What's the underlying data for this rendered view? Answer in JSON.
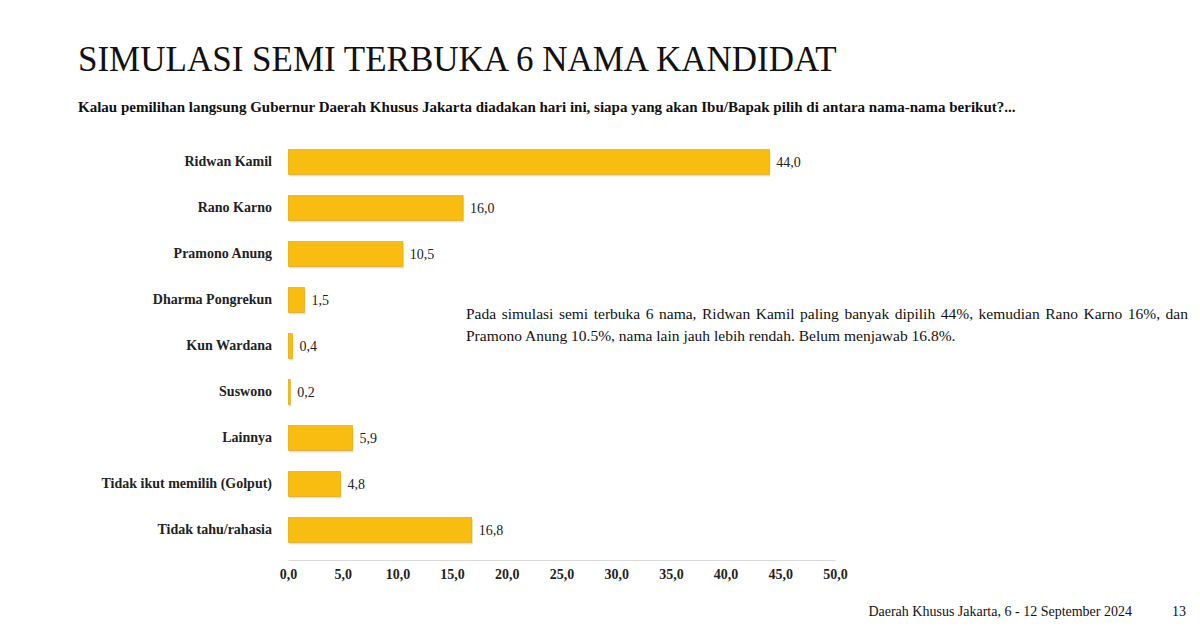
{
  "chart_data": {
    "type": "bar",
    "orientation": "horizontal",
    "title": "SIMULASI SEMI TERBUKA 6 NAMA KANDIDAT",
    "subtitle": "Kalau pemilihan langsung Gubernur Daerah Khusus Jakarta diadakan hari ini, siapa yang akan Ibu/Bapak pilih di antara nama-nama berikut?...",
    "categories": [
      "Ridwan Kamil",
      "Rano Karno",
      "Pramono Anung",
      "Dharma Pongrekun",
      "Kun Wardana",
      "Suswono",
      "Lainnya",
      "Tidak ikut memilih (Golput)",
      "Tidak tahu/rahasia"
    ],
    "values": [
      44.0,
      16.0,
      10.5,
      1.5,
      0.4,
      0.2,
      5.9,
      4.8,
      16.8
    ],
    "value_labels": [
      "44,0",
      "16,0",
      "10,5",
      "1,5",
      "0,4",
      "0,2",
      "5,9",
      "4,8",
      "16,8"
    ],
    "data_labels": true,
    "color": "#f8bd10",
    "xlim": [
      0,
      50
    ],
    "xticks": [
      {
        "value": 0,
        "label": "0,0"
      },
      {
        "value": 5,
        "label": "5,0"
      },
      {
        "value": 10,
        "label": "10,0"
      },
      {
        "value": 15,
        "label": "15,0"
      },
      {
        "value": 20,
        "label": "20,0"
      },
      {
        "value": 25,
        "label": "25,0"
      },
      {
        "value": 30,
        "label": "30,0"
      },
      {
        "value": 35,
        "label": "35,0"
      },
      {
        "value": 40,
        "label": "40,0"
      },
      {
        "value": 45,
        "label": "45,0"
      },
      {
        "value": 50,
        "label": "50,0"
      }
    ],
    "grid": false,
    "annotation": "Pada simulasi semi terbuka 6 nama, Ridwan Kamil paling banyak dipilih 44%, kemudian Rano Karno 16%, dan Pramono Anung 10.5%, nama lain jauh lebih rendah. Belum menjawab 16.8%.",
    "footer": "Daerah Khusus Jakarta, 6 - 12 September 2024",
    "page_number": "13"
  }
}
